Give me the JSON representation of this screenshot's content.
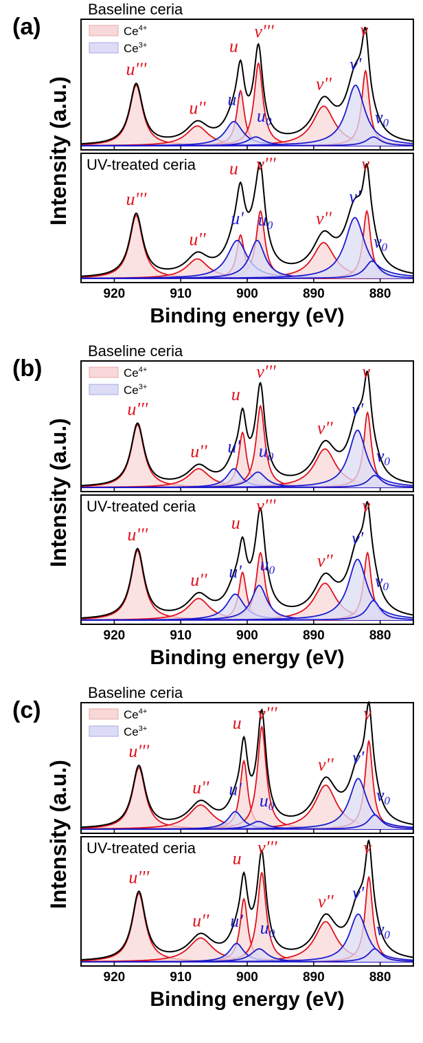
{
  "legend": [
    {
      "label": "Ce",
      "sup": "4+",
      "fill": "#f8d8d8",
      "stroke": "#e8a8a8"
    },
    {
      "label": "Ce",
      "sup": "3+",
      "fill": "#dcdcf6",
      "stroke": "#a8a8e0"
    }
  ],
  "colors": {
    "ce4": "#e0101a",
    "ce3": "#1a1ad0",
    "envelope": "#000000",
    "ce4_fill": "#f8d8d8",
    "ce3_fill": "#dcdcf6"
  },
  "chart_data": [
    {
      "panel": "(a)",
      "type": "line",
      "xlabel": "Binding energy (eV)",
      "ylabel": "Intensity (a.u.)",
      "xlim": [
        925,
        875
      ],
      "x_reversed": true,
      "xticks": [
        920,
        910,
        900,
        890,
        880
      ],
      "subplots": [
        {
          "title": "Baseline ceria",
          "legend": true,
          "peaks": [
            {
              "label": "u'''",
              "sub": "",
              "ox": "Ce4+",
              "center": 916.7,
              "height": 0.55,
              "width": 1.2,
              "labelled": true
            },
            {
              "label": "u''",
              "sub": "",
              "ox": "Ce4+",
              "center": 907.5,
              "height": 0.18,
              "width": 2.0,
              "labelled": true
            },
            {
              "label": "u",
              "sub": "",
              "ox": "Ce4+",
              "center": 901.0,
              "height": 0.5,
              "width": 0.7,
              "labelled": true
            },
            {
              "label": "v'''",
              "sub": "",
              "ox": "Ce4+",
              "center": 898.3,
              "height": 0.75,
              "width": 0.8,
              "labelled": true
            },
            {
              "label": "v''",
              "sub": "",
              "ox": "Ce4+",
              "center": 888.5,
              "height": 0.36,
              "width": 2.0,
              "labelled": true
            },
            {
              "label": "v",
              "sub": "",
              "ox": "Ce4+",
              "center": 882.2,
              "height": 0.68,
              "width": 0.7,
              "labelled": true
            },
            {
              "label": "u'",
              "sub": "",
              "ox": "Ce3+",
              "center": 902.0,
              "height": 0.22,
              "width": 1.6,
              "labelled": true
            },
            {
              "label": "u",
              "sub": "0",
              "ox": "Ce3+",
              "center": 898.7,
              "height": 0.08,
              "width": 1.5,
              "labelled": true
            },
            {
              "label": "v'",
              "sub": "",
              "ox": "Ce3+",
              "center": 883.7,
              "height": 0.55,
              "width": 1.7,
              "labelled": true
            },
            {
              "label": "v",
              "sub": "0",
              "ox": "Ce3+",
              "center": 881.0,
              "height": 0.08,
              "width": 1.3,
              "labelled": true
            }
          ]
        },
        {
          "title": "UV-treated ceria",
          "legend": false,
          "peaks": [
            {
              "label": "u'''",
              "sub": "",
              "ox": "Ce4+",
              "center": 916.7,
              "height": 0.58,
              "width": 1.2,
              "labelled": true
            },
            {
              "label": "u''",
              "sub": "",
              "ox": "Ce4+",
              "center": 907.5,
              "height": 0.18,
              "width": 2.0,
              "labelled": true
            },
            {
              "label": "u",
              "sub": "",
              "ox": "Ce4+",
              "center": 901.0,
              "height": 0.4,
              "width": 0.7,
              "labelled": true
            },
            {
              "label": "v'''",
              "sub": "",
              "ox": "Ce4+",
              "center": 898.0,
              "height": 0.62,
              "width": 0.8,
              "labelled": true
            },
            {
              "label": "v''",
              "sub": "",
              "ox": "Ce4+",
              "center": 888.5,
              "height": 0.33,
              "width": 2.0,
              "labelled": true
            },
            {
              "label": "v",
              "sub": "",
              "ox": "Ce4+",
              "center": 882.0,
              "height": 0.62,
              "width": 0.7,
              "labelled": true
            },
            {
              "label": "u'",
              "sub": "",
              "ox": "Ce3+",
              "center": 901.5,
              "height": 0.35,
              "width": 1.8,
              "labelled": true
            },
            {
              "label": "u",
              "sub": "0",
              "ox": "Ce3+",
              "center": 898.5,
              "height": 0.35,
              "width": 1.4,
              "labelled": true
            },
            {
              "label": "v'",
              "sub": "",
              "ox": "Ce3+",
              "center": 883.8,
              "height": 0.56,
              "width": 1.8,
              "labelled": true
            },
            {
              "label": "v",
              "sub": "0",
              "ox": "Ce3+",
              "center": 881.2,
              "height": 0.16,
              "width": 1.3,
              "labelled": true
            }
          ]
        }
      ]
    },
    {
      "panel": "(b)",
      "type": "line",
      "xlabel": "Binding energy (eV)",
      "ylabel": "Intensity (a.u.)",
      "xlim": [
        925,
        875
      ],
      "x_reversed": true,
      "xticks": [
        920,
        910,
        900,
        890,
        880
      ],
      "subplots": [
        {
          "title": "Baseline ceria",
          "legend": true,
          "peaks": [
            {
              "label": "u'''",
              "sub": "",
              "ox": "Ce4+",
              "center": 916.5,
              "height": 0.57,
              "width": 1.2,
              "labelled": true
            },
            {
              "label": "u''",
              "sub": "",
              "ox": "Ce4+",
              "center": 907.3,
              "height": 0.17,
              "width": 2.0,
              "labelled": true
            },
            {
              "label": "u",
              "sub": "",
              "ox": "Ce4+",
              "center": 900.7,
              "height": 0.5,
              "width": 0.7,
              "labelled": true
            },
            {
              "label": "v'''",
              "sub": "",
              "ox": "Ce4+",
              "center": 898.0,
              "height": 0.74,
              "width": 0.8,
              "labelled": true
            },
            {
              "label": "v''",
              "sub": "",
              "ox": "Ce4+",
              "center": 888.3,
              "height": 0.35,
              "width": 2.0,
              "labelled": true
            },
            {
              "label": "v",
              "sub": "",
              "ox": "Ce4+",
              "center": 881.9,
              "height": 0.68,
              "width": 0.7,
              "labelled": true
            },
            {
              "label": "u'",
              "sub": "",
              "ox": "Ce3+",
              "center": 902.0,
              "height": 0.17,
              "width": 1.3,
              "labelled": true
            },
            {
              "label": "u",
              "sub": "0",
              "ox": "Ce3+",
              "center": 898.4,
              "height": 0.14,
              "width": 1.5,
              "labelled": true
            },
            {
              "label": "v'",
              "sub": "",
              "ox": "Ce3+",
              "center": 883.4,
              "height": 0.52,
              "width": 1.6,
              "labelled": true
            },
            {
              "label": "v",
              "sub": "0",
              "ox": "Ce3+",
              "center": 880.8,
              "height": 0.11,
              "width": 1.2,
              "labelled": true
            }
          ]
        },
        {
          "title": "UV-treated ceria",
          "legend": false,
          "peaks": [
            {
              "label": "u'''",
              "sub": "",
              "ox": "Ce4+",
              "center": 916.5,
              "height": 0.64,
              "width": 1.2,
              "labelled": true
            },
            {
              "label": "u''",
              "sub": "",
              "ox": "Ce4+",
              "center": 907.3,
              "height": 0.2,
              "width": 2.0,
              "labelled": true
            },
            {
              "label": "u",
              "sub": "",
              "ox": "Ce4+",
              "center": 900.7,
              "height": 0.44,
              "width": 0.7,
              "labelled": true
            },
            {
              "label": "v'''",
              "sub": "",
              "ox": "Ce4+",
              "center": 898.0,
              "height": 0.62,
              "width": 0.8,
              "labelled": true
            },
            {
              "label": "v''",
              "sub": "",
              "ox": "Ce4+",
              "center": 888.3,
              "height": 0.34,
              "width": 2.0,
              "labelled": true
            },
            {
              "label": "v",
              "sub": "",
              "ox": "Ce4+",
              "center": 881.9,
              "height": 0.62,
              "width": 0.7,
              "labelled": true
            },
            {
              "label": "u'",
              "sub": "",
              "ox": "Ce3+",
              "center": 901.8,
              "height": 0.24,
              "width": 1.6,
              "labelled": true
            },
            {
              "label": "u",
              "sub": "0",
              "ox": "Ce3+",
              "center": 898.2,
              "height": 0.32,
              "width": 1.4,
              "labelled": true
            },
            {
              "label": "v'",
              "sub": "",
              "ox": "Ce3+",
              "center": 883.4,
              "height": 0.56,
              "width": 1.7,
              "labelled": true
            },
            {
              "label": "v",
              "sub": "0",
              "ox": "Ce3+",
              "center": 881.0,
              "height": 0.18,
              "width": 1.2,
              "labelled": true
            }
          ]
        }
      ]
    },
    {
      "panel": "(c)",
      "type": "line",
      "xlabel": "Binding energy (eV)",
      "ylabel": "Intensity (a.u.)",
      "xlim": [
        925,
        875
      ],
      "x_reversed": true,
      "xticks": [
        920,
        910,
        900,
        890,
        880
      ],
      "subplots": [
        {
          "title": "Baseline ceria",
          "legend": true,
          "peaks": [
            {
              "label": "u'''",
              "sub": "",
              "ox": "Ce4+",
              "center": 916.3,
              "height": 0.56,
              "width": 1.2,
              "labelled": true
            },
            {
              "label": "u''",
              "sub": "",
              "ox": "Ce4+",
              "center": 907.0,
              "height": 0.22,
              "width": 2.2,
              "labelled": true
            },
            {
              "label": "u",
              "sub": "",
              "ox": "Ce4+",
              "center": 900.5,
              "height": 0.62,
              "width": 0.7,
              "labelled": true
            },
            {
              "label": "v'''",
              "sub": "",
              "ox": "Ce4+",
              "center": 897.8,
              "height": 0.93,
              "width": 0.8,
              "labelled": true
            },
            {
              "label": "v''",
              "sub": "",
              "ox": "Ce4+",
              "center": 888.2,
              "height": 0.4,
              "width": 2.0,
              "labelled": true
            },
            {
              "label": "v",
              "sub": "",
              "ox": "Ce4+",
              "center": 881.7,
              "height": 0.8,
              "width": 0.7,
              "labelled": true
            },
            {
              "label": "u'",
              "sub": "",
              "ox": "Ce3+",
              "center": 901.8,
              "height": 0.16,
              "width": 1.3,
              "labelled": true
            },
            {
              "label": "u",
              "sub": "0",
              "ox": "Ce3+",
              "center": 898.3,
              "height": 0.07,
              "width": 1.5,
              "labelled": true
            },
            {
              "label": "v'",
              "sub": "",
              "ox": "Ce3+",
              "center": 883.3,
              "height": 0.46,
              "width": 1.6,
              "labelled": true
            },
            {
              "label": "v",
              "sub": "0",
              "ox": "Ce3+",
              "center": 880.8,
              "height": 0.13,
              "width": 1.2,
              "labelled": true
            }
          ]
        },
        {
          "title": "UV-treated ceria",
          "legend": false,
          "peaks": [
            {
              "label": "u'''",
              "sub": "",
              "ox": "Ce4+",
              "center": 916.3,
              "height": 0.63,
              "width": 1.2,
              "labelled": true
            },
            {
              "label": "u''",
              "sub": "",
              "ox": "Ce4+",
              "center": 907.0,
              "height": 0.22,
              "width": 2.2,
              "labelled": true
            },
            {
              "label": "u",
              "sub": "",
              "ox": "Ce4+",
              "center": 900.5,
              "height": 0.58,
              "width": 0.7,
              "labelled": true
            },
            {
              "label": "v'''",
              "sub": "",
              "ox": "Ce4+",
              "center": 897.8,
              "height": 0.82,
              "width": 0.8,
              "labelled": true
            },
            {
              "label": "v''",
              "sub": "",
              "ox": "Ce4+",
              "center": 888.2,
              "height": 0.37,
              "width": 2.0,
              "labelled": true
            },
            {
              "label": "v",
              "sub": "",
              "ox": "Ce4+",
              "center": 881.7,
              "height": 0.78,
              "width": 0.7,
              "labelled": true
            },
            {
              "label": "u'",
              "sub": "",
              "ox": "Ce3+",
              "center": 901.6,
              "height": 0.17,
              "width": 1.3,
              "labelled": true
            },
            {
              "label": "u",
              "sub": "0",
              "ox": "Ce3+",
              "center": 898.2,
              "height": 0.12,
              "width": 1.5,
              "labelled": true
            },
            {
              "label": "v'",
              "sub": "",
              "ox": "Ce3+",
              "center": 883.3,
              "height": 0.44,
              "width": 1.6,
              "labelled": true
            },
            {
              "label": "v",
              "sub": "0",
              "ox": "Ce3+",
              "center": 880.8,
              "height": 0.12,
              "width": 1.2,
              "labelled": true
            }
          ]
        }
      ]
    }
  ]
}
